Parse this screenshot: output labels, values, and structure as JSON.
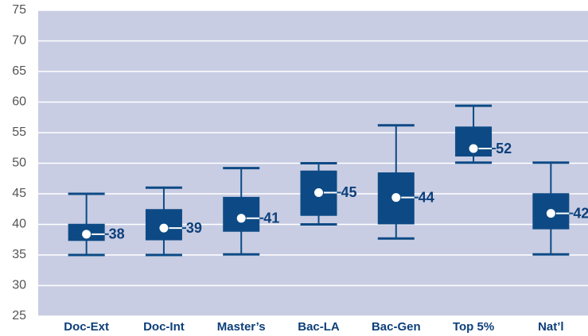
{
  "chart_data": {
    "type": "box",
    "categories": [
      "Doc-Ext",
      "Doc-Int",
      "Master’s",
      "Bac-LA",
      "Bac-Gen",
      "Top 5%",
      "Nat’l"
    ],
    "min": [
      35,
      35,
      35.1,
      40,
      37.7,
      50.1,
      35.1
    ],
    "q1": [
      37.3,
      37.4,
      38.8,
      41.4,
      40,
      51.1,
      39.2
    ],
    "q3": [
      40.1,
      42.5,
      44.5,
      48.8,
      48.5,
      56,
      45.1
    ],
    "max": [
      45,
      46,
      49.2,
      50,
      56.2,
      59.4,
      50.1
    ],
    "mean": [
      38.4,
      39.4,
      41,
      45.2,
      44.4,
      52.4,
      41.8
    ],
    "value_labels": [
      "38",
      "39",
      "41",
      "45",
      "44",
      "52",
      "42"
    ],
    "ylim": [
      25,
      75
    ],
    "yticks": [
      25,
      30,
      35,
      40,
      45,
      50,
      55,
      60,
      65,
      70,
      75
    ],
    "grid": true,
    "color": "#0d4a85",
    "background": "#c8cde3"
  }
}
